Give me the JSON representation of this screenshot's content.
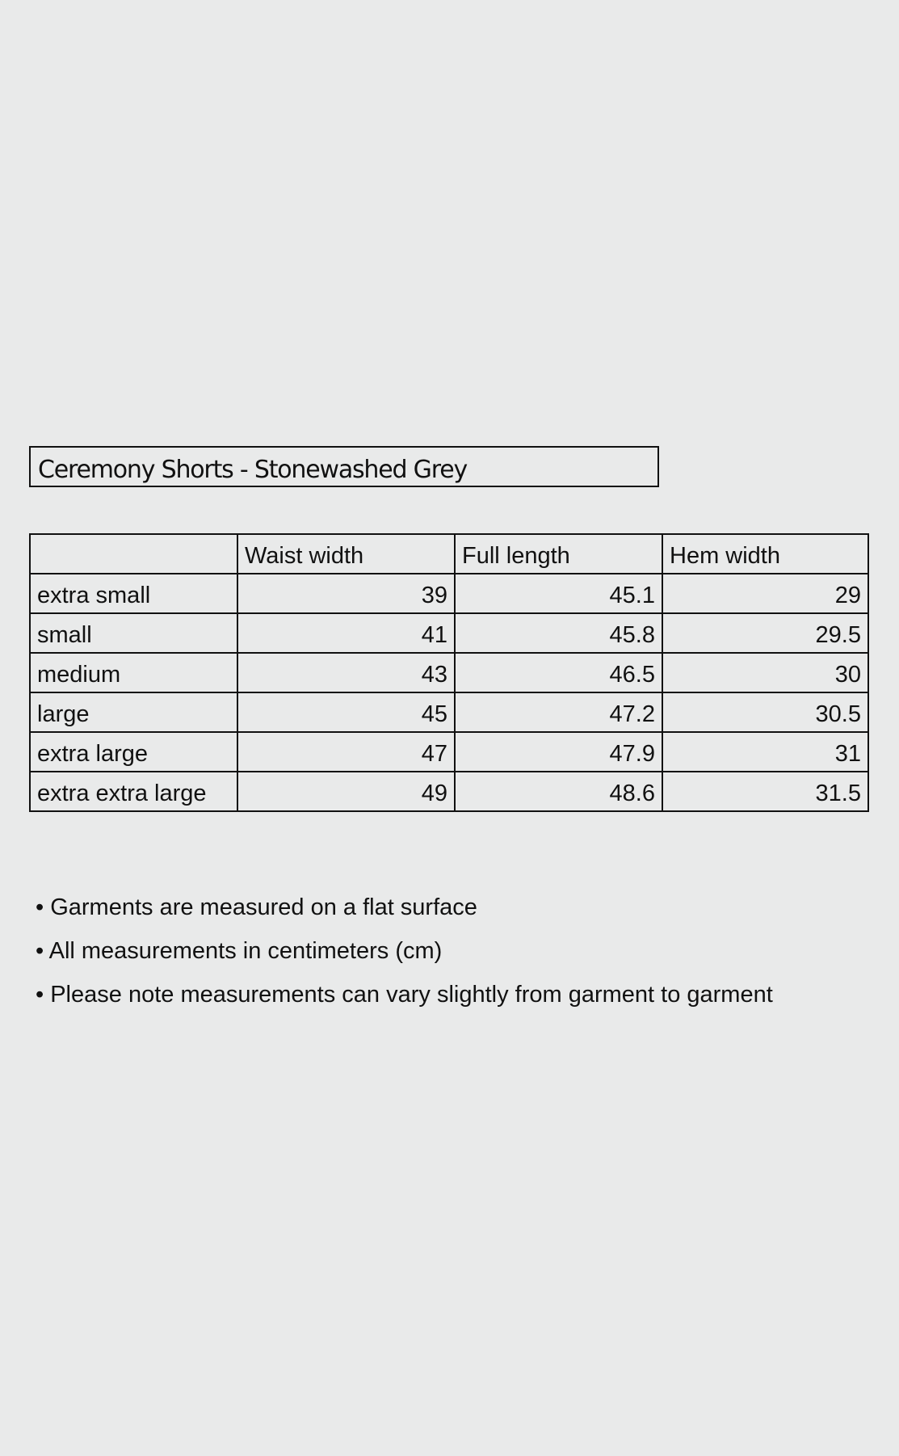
{
  "title": "Ceremony Shorts - Stonewashed Grey",
  "table": {
    "headers": [
      "",
      "Waist width",
      "Full length",
      "Hem width"
    ],
    "rows": [
      [
        "extra small",
        "39",
        "45.1",
        "29"
      ],
      [
        "small",
        "41",
        "45.8",
        "29.5"
      ],
      [
        "medium",
        "43",
        "46.5",
        "30"
      ],
      [
        "large",
        "45",
        "47.2",
        "30.5"
      ],
      [
        "extra large",
        "47",
        "47.9",
        "31"
      ],
      [
        "extra extra large",
        "49",
        "48.6",
        "31.5"
      ]
    ]
  },
  "notes": [
    "• Garments are measured on a flat surface",
    "• All measurements in centimeters (cm)",
    "• Please note measurements can vary slightly from garment to garment"
  ]
}
